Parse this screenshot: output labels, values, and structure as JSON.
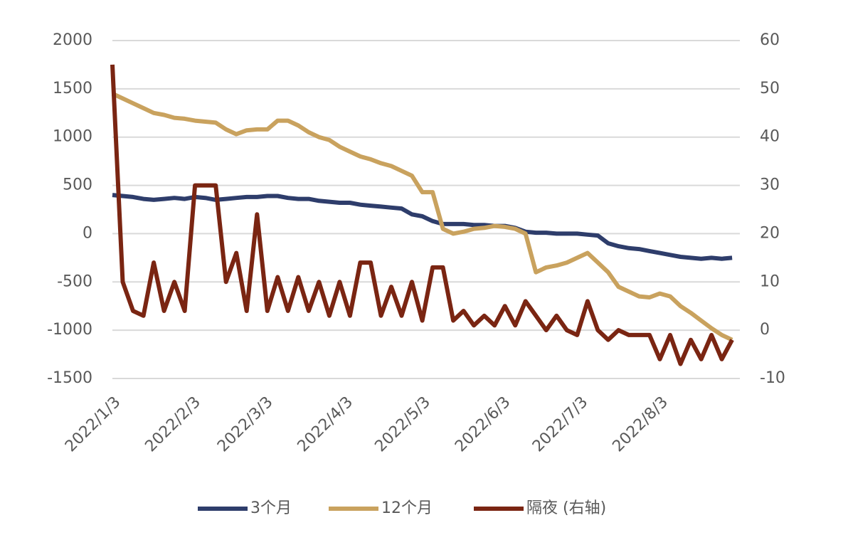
{
  "chart_data": {
    "type": "line",
    "x": [
      "2022/1/3",
      "2022/1/7",
      "2022/1/11",
      "2022/1/15",
      "2022/1/19",
      "2022/1/23",
      "2022/1/27",
      "2022/1/31",
      "2022/2/4",
      "2022/2/8",
      "2022/2/12",
      "2022/2/16",
      "2022/2/20",
      "2022/2/24",
      "2022/2/28",
      "2022/3/4",
      "2022/3/8",
      "2022/3/12",
      "2022/3/16",
      "2022/3/20",
      "2022/3/24",
      "2022/3/28",
      "2022/4/1",
      "2022/4/5",
      "2022/4/9",
      "2022/4/13",
      "2022/4/17",
      "2022/4/21",
      "2022/4/25",
      "2022/4/29",
      "2022/5/3",
      "2022/5/7",
      "2022/5/11",
      "2022/5/15",
      "2022/5/19",
      "2022/5/23",
      "2022/5/27",
      "2022/5/31",
      "2022/6/4",
      "2022/6/8",
      "2022/6/12",
      "2022/6/16",
      "2022/6/20",
      "2022/6/24",
      "2022/6/28",
      "2022/7/2",
      "2022/7/6",
      "2022/7/10",
      "2022/7/14",
      "2022/7/18",
      "2022/7/22",
      "2022/7/26",
      "2022/7/30",
      "2022/8/3",
      "2022/8/7",
      "2022/8/11",
      "2022/8/15",
      "2022/8/19",
      "2022/8/23",
      "2022/8/27",
      "2022/8/31"
    ],
    "series": [
      {
        "name": "3个月",
        "color": "#2e3d6b",
        "values": [
          400,
          390,
          380,
          360,
          350,
          360,
          370,
          360,
          380,
          370,
          350,
          360,
          370,
          380,
          380,
          390,
          390,
          370,
          360,
          360,
          340,
          330,
          320,
          320,
          300,
          290,
          280,
          270,
          260,
          200,
          180,
          130,
          100,
          100,
          100,
          90,
          90,
          80,
          80,
          60,
          20,
          10,
          10,
          0,
          0,
          0,
          -10,
          -20,
          -100,
          -130,
          -150,
          -160,
          -180,
          -200,
          -220,
          -240,
          -250,
          -260,
          -250,
          -260,
          -250
        ]
      },
      {
        "name": "12个月",
        "color": "#c9a25e",
        "values": [
          1450,
          1400,
          1350,
          1300,
          1250,
          1230,
          1200,
          1190,
          1170,
          1160,
          1150,
          1080,
          1030,
          1070,
          1080,
          1080,
          1170,
          1170,
          1120,
          1050,
          1000,
          970,
          900,
          850,
          800,
          770,
          730,
          700,
          650,
          600,
          430,
          430,
          50,
          0,
          20,
          50,
          60,
          80,
          70,
          50,
          0,
          -400,
          -350,
          -330,
          -300,
          -250,
          -200,
          -300,
          -400,
          -550,
          -600,
          -650,
          -660,
          -620,
          -650,
          -750,
          -820,
          -900,
          -980,
          -1050,
          -1100
        ]
      },
      {
        "name": "隔夜 (右轴)",
        "color": "#7a2512",
        "axis": "y2",
        "values": [
          55,
          10,
          4,
          3,
          14,
          4,
          10,
          4,
          30,
          30,
          30,
          10,
          16,
          4,
          24,
          4,
          11,
          4,
          11,
          4,
          10,
          3,
          10,
          3,
          14,
          14,
          3,
          9,
          3,
          10,
          2,
          13,
          13,
          2,
          4,
          1,
          3,
          1,
          5,
          1,
          6,
          3,
          0,
          3,
          0,
          -1,
          6,
          0,
          -2,
          0,
          -1,
          -1,
          -1,
          -6,
          -1,
          -7,
          -2,
          -6,
          -1,
          -6,
          -2
        ]
      }
    ],
    "xlim": [
      "2022/1/3",
      "2022/9/3"
    ],
    "xticks": [
      "2022/1/3",
      "2022/2/3",
      "2022/3/3",
      "2022/4/3",
      "2022/5/3",
      "2022/6/3",
      "2022/7/3",
      "2022/8/3"
    ],
    "ylim": [
      -1500,
      2000
    ],
    "yticks": [
      -1500,
      -1000,
      -500,
      0,
      500,
      1000,
      1500,
      2000
    ],
    "y2lim": [
      -10,
      60
    ],
    "y2ticks": [
      -10,
      0,
      10,
      20,
      30,
      40,
      50,
      60
    ],
    "grid": true
  }
}
